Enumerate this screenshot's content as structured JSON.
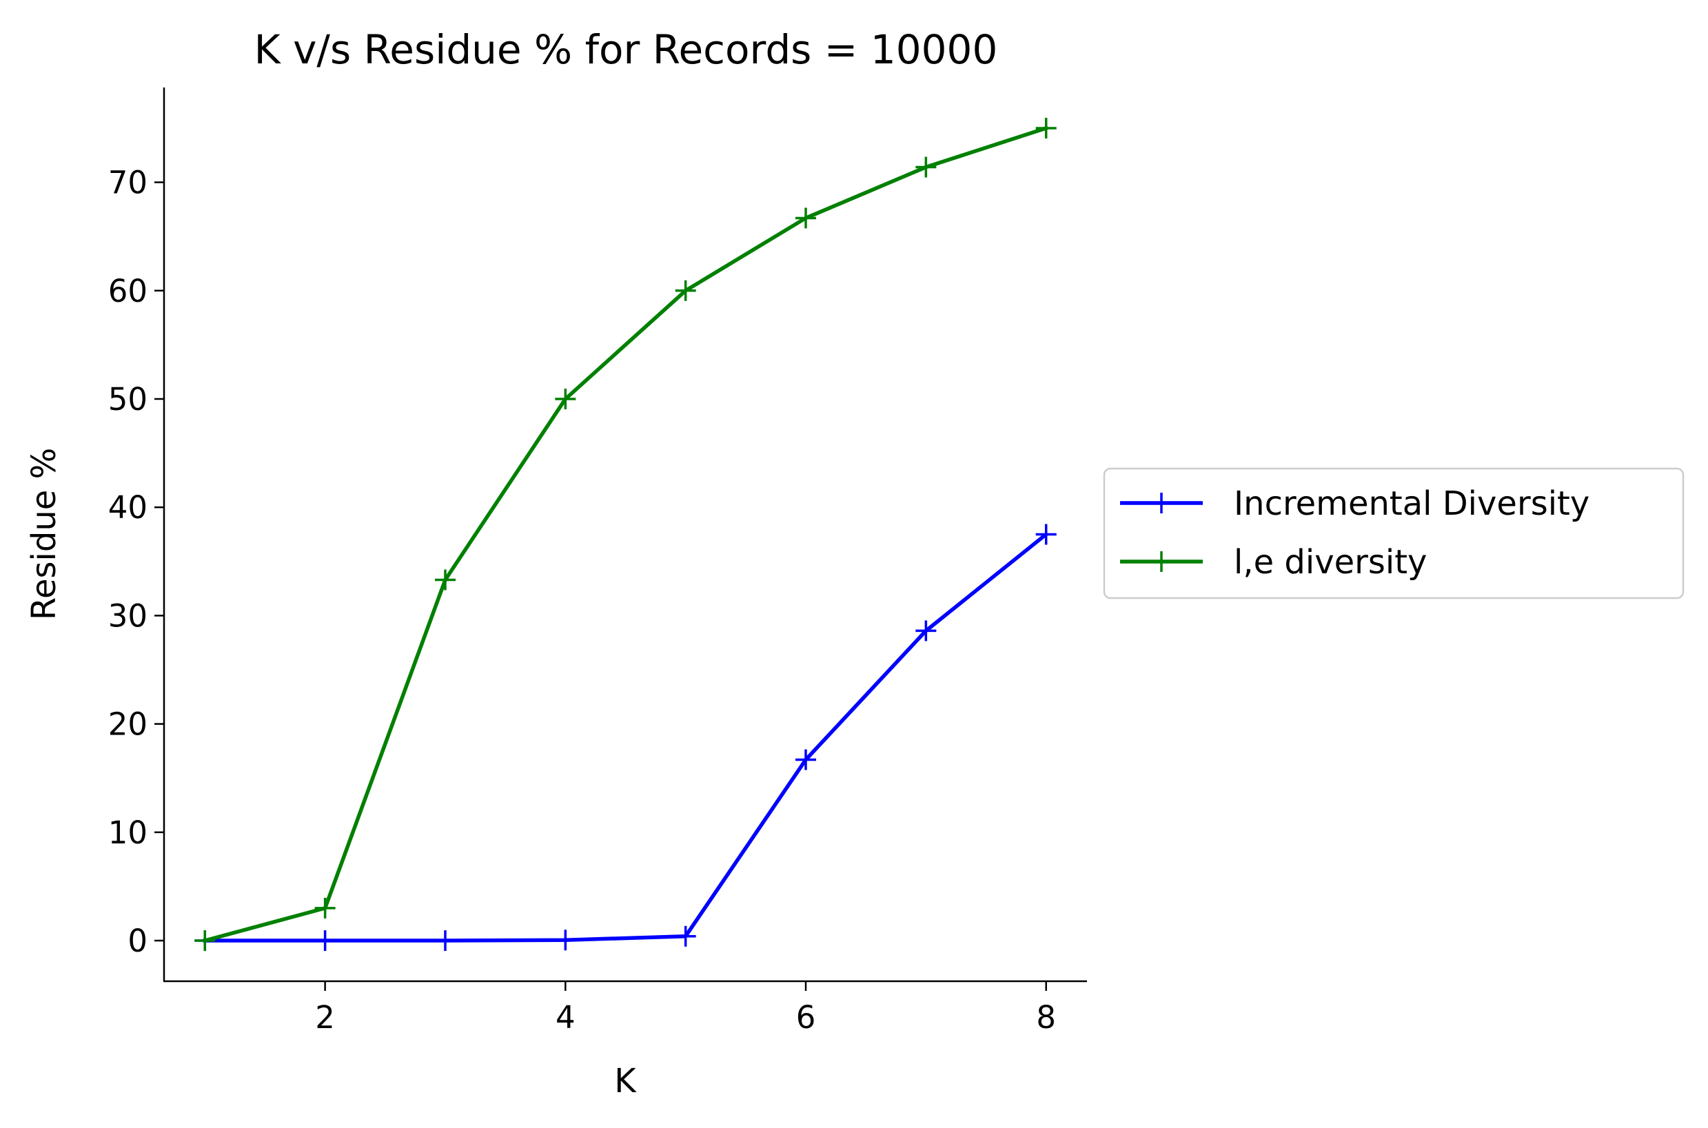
{
  "chart_data": {
    "type": "line",
    "title": "K v/s Residue % for Records = 10000",
    "xlabel": "K",
    "ylabel": "Residue %",
    "x": [
      1,
      2,
      3,
      4,
      5,
      6,
      7,
      8
    ],
    "xlim": [
      0.66,
      8.34
    ],
    "ylim": [
      -3.75,
      78.75
    ],
    "xticks": [
      2,
      4,
      6,
      8
    ],
    "yticks": [
      0,
      10,
      20,
      30,
      40,
      50,
      60,
      70
    ],
    "grid": false,
    "legend": "center-right",
    "series": [
      {
        "name": "Incremental Diversity",
        "color": "#0000ff",
        "marker": "plus",
        "values": [
          0,
          0,
          0,
          0.05,
          0.4,
          16.7,
          28.6,
          37.5
        ]
      },
      {
        "name": "l,e diversity",
        "color": "#008000",
        "marker": "plus",
        "values": [
          0,
          3,
          33.3,
          50,
          60,
          66.7,
          71.4,
          75
        ]
      }
    ]
  }
}
